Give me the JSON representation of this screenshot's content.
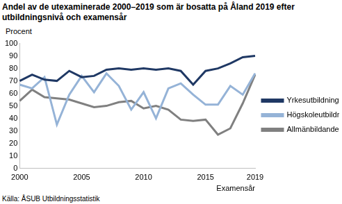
{
  "chart_data": {
    "type": "line",
    "title": "Andel av de utexaminerade 2000–2019 som är bosatta på Åland 2019 efter utbildningsnivå och examensår",
    "y_label": "Procent",
    "x_label": "Examensår",
    "source": "Källa: ÅSUB Utbildningsstatistik",
    "categories": [
      "2000",
      null,
      null,
      null,
      null,
      "2005",
      null,
      null,
      null,
      null,
      "2010",
      null,
      null,
      null,
      null,
      "2015",
      null,
      null,
      null,
      "2019"
    ],
    "series": [
      {
        "name": "Yrkesutbildning",
        "color": "#1f3864",
        "values": [
          70,
          75,
          71,
          70,
          78,
          73,
          74,
          79,
          80,
          79,
          80,
          79,
          80,
          78,
          67,
          78,
          80,
          84,
          89,
          90
        ]
      },
      {
        "name": "Högskoleutbildning",
        "color": "#95b3d7",
        "values": [
          67,
          64,
          73,
          35,
          59,
          74,
          61,
          76,
          66,
          47,
          61,
          40,
          64,
          68,
          59,
          51,
          51,
          66,
          59,
          76
        ]
      },
      {
        "name": "Allmänbildande",
        "color": "#808080",
        "values": [
          54,
          63,
          57,
          56,
          55,
          52,
          49,
          50,
          53,
          54,
          48,
          50,
          47,
          39,
          38,
          39,
          27,
          32,
          52,
          75
        ]
      }
    ],
    "ylim": [
      0,
      100
    ],
    "yticks": [
      0,
      10,
      20,
      30,
      40,
      50,
      60,
      70,
      80,
      90,
      100
    ],
    "grid": false,
    "legend": "right"
  }
}
